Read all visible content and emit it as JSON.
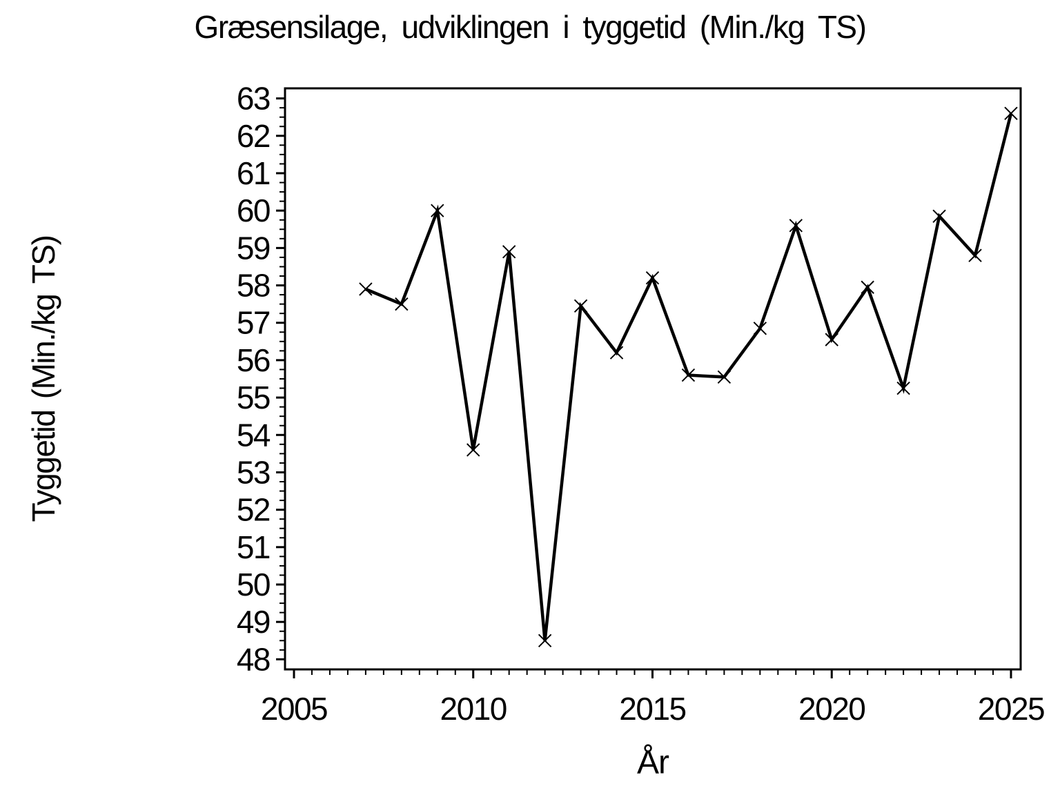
{
  "title": "Græsensilage, udviklingen i tyggetid (Min./kg TS)",
  "chart_data": {
    "type": "line",
    "title": "Græsensilage, udviklingen i tyggetid (Min./kg TS)",
    "xlabel": "År",
    "ylabel": "Tyggetid (Min./kg TS)",
    "x": [
      2007,
      2008,
      2009,
      2010,
      2011,
      2012,
      2013,
      2014,
      2015,
      2016,
      2017,
      2018,
      2019,
      2020,
      2021,
      2022,
      2023,
      2024,
      2025
    ],
    "values": [
      57.9,
      57.5,
      60.0,
      53.6,
      58.9,
      48.5,
      57.45,
      56.2,
      58.2,
      55.6,
      55.55,
      56.85,
      59.6,
      56.55,
      57.95,
      55.25,
      59.85,
      58.8,
      62.6
    ],
    "xlim": [
      2004.75,
      2025.27
    ],
    "ylim": [
      47.73,
      63.27
    ],
    "x_major_ticks": [
      2005,
      2010,
      2015,
      2020,
      2025
    ],
    "x_minor_step": 0.5,
    "x_minor_range": [
      2005,
      2025
    ],
    "y_major_ticks": [
      48,
      49,
      50,
      51,
      52,
      53,
      54,
      55,
      56,
      57,
      58,
      59,
      60,
      61,
      62,
      63
    ],
    "y_minor_step": 0.25,
    "y_minor_range": [
      48,
      63
    ],
    "marker": "x",
    "grid": false,
    "legend": "none",
    "frame": "box",
    "line_color": "#000000",
    "background_color": "#ffffff"
  }
}
